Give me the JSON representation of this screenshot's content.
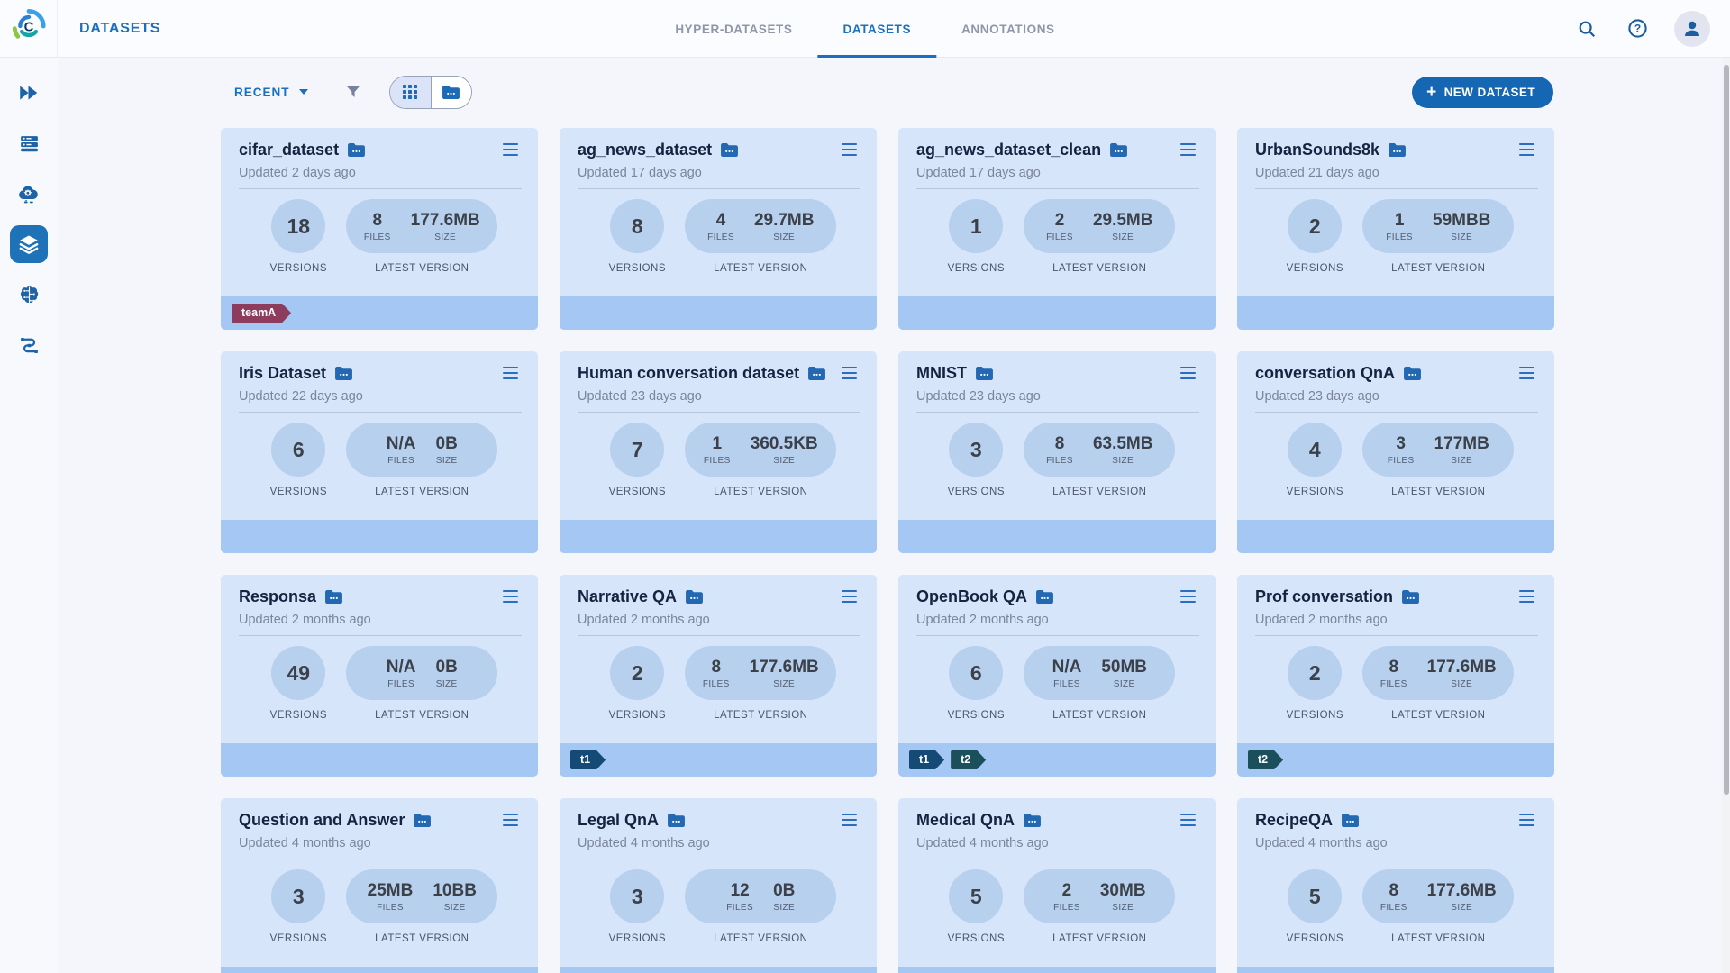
{
  "header": {
    "title": "DATASETS",
    "tabs": [
      {
        "label": "HYPER-DATASETS"
      },
      {
        "label": "DATASETS"
      },
      {
        "label": "ANNOTATIONS"
      }
    ],
    "active_tab": "DATASETS",
    "action_icons": [
      "search-icon",
      "help-icon",
      "user-avatar"
    ]
  },
  "sidebar": {
    "items": [
      "projects-icon",
      "queues-icon",
      "cloud-apps-icon",
      "datasets-icon",
      "models-brain-icon",
      "pipelines-icon"
    ],
    "active": "datasets-icon"
  },
  "toolbar": {
    "sort_label": "RECENT",
    "filter_icon": "funnel-icon",
    "view_modes": [
      "grid-view-icon",
      "folder-view-icon"
    ],
    "active_view": "grid-view-icon",
    "new_dataset": {
      "plus": "+",
      "label": "NEW DATASET"
    }
  },
  "card_labels": {
    "versions": "VERSIONS",
    "files": "FILES",
    "size": "SIZE",
    "latest_version": "LATEST VERSION"
  },
  "cards": [
    {
      "name": "cifar_dataset",
      "updated": "Updated 2 days ago",
      "versions": "18",
      "files": "8",
      "size": "177.6MB",
      "tags": [
        {
          "label": "teamA",
          "color": "#8e3c5e"
        }
      ]
    },
    {
      "name": "ag_news_dataset",
      "updated": "Updated 17 days ago",
      "versions": "8",
      "files": "4",
      "size": "29.7MB",
      "tags": []
    },
    {
      "name": "ag_news_dataset_clean",
      "updated": "Updated 17 days ago",
      "versions": "1",
      "files": "2",
      "size": "29.5MB",
      "tags": []
    },
    {
      "name": "UrbanSounds8k",
      "updated": "Updated 21 days ago",
      "versions": "2",
      "files": "1",
      "size": "59MBB",
      "tags": []
    },
    {
      "name": "Iris Dataset",
      "updated": "Updated 22 days ago",
      "versions": "6",
      "files": "N/A",
      "size": "0B",
      "tags": []
    },
    {
      "name": "Human conversation dataset",
      "updated": "Updated 23 days ago",
      "versions": "7",
      "files": "1",
      "size": "360.5KB",
      "tags": []
    },
    {
      "name": "MNIST",
      "updated": "Updated 23 days ago",
      "versions": "3",
      "files": "8",
      "size": "63.5MB",
      "tags": []
    },
    {
      "name": "conversation QnA",
      "updated": "Updated 23 days ago",
      "versions": "4",
      "files": "3",
      "size": "177MB",
      "tags": []
    },
    {
      "name": "Responsa",
      "updated": "Updated 2 months ago",
      "versions": "49",
      "files": "N/A",
      "size": "0B",
      "tags": []
    },
    {
      "name": "Narrative QA",
      "updated": "Updated 2 months ago",
      "versions": "2",
      "files": "8",
      "size": "177.6MB",
      "tags": [
        {
          "label": "t1",
          "color": "#154a76"
        }
      ]
    },
    {
      "name": "OpenBook QA",
      "updated": "Updated 2 months ago",
      "versions": "6",
      "files": "N/A",
      "size": "50MB",
      "tags": [
        {
          "label": "t1",
          "color": "#154a76"
        },
        {
          "label": "t2",
          "color": "#1b4f5c"
        }
      ]
    },
    {
      "name": "Prof conversation",
      "updated": "Updated 2 months ago",
      "versions": "2",
      "files": "8",
      "size": "177.6MB",
      "tags": [
        {
          "label": "t2",
          "color": "#1b4f5c"
        }
      ]
    },
    {
      "name": "Question and Answer",
      "updated": "Updated 4 months ago",
      "versions": "3",
      "files": "25MB",
      "size": "10BB",
      "tags": []
    },
    {
      "name": "Legal QnA",
      "updated": "Updated 4 months ago",
      "versions": "3",
      "files": "12",
      "size": "0B",
      "tags": []
    },
    {
      "name": "Medical QnA",
      "updated": "Updated 4 months ago",
      "versions": "5",
      "files": "2",
      "size": "30MB",
      "tags": []
    },
    {
      "name": "RecipeQA",
      "updated": "Updated 4 months ago",
      "versions": "5",
      "files": "8",
      "size": "177.6MB",
      "tags": []
    }
  ],
  "colors": {
    "accent_blue": "#1a6fc0",
    "button_bg": "#1667b3",
    "card_bg": "#d6e5fa",
    "bubble_bg": "#b6d0ee",
    "footer_bg": "#a5c7f3",
    "sidebar_active_bg": "#1d72b8",
    "tag_teamA": "#8e3c5e",
    "tag_t1": "#154a76",
    "tag_t2": "#1b4f5c"
  }
}
